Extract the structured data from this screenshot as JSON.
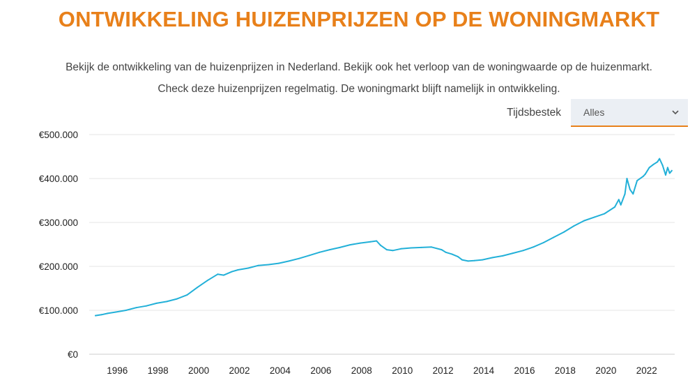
{
  "header": {
    "title": "ONTWIKKELING HUIZENPRIJZEN OP DE WONINGMARKT",
    "intro_line1": "Bekijk de ontwikkeling van de huizenprijzen in Nederland. Bekijk ook het verloop van de woningwaarde op de huizenmarkt.",
    "intro_line2": "Check deze huizenprijzen regelmatig. De woningmarkt blijft namelijk in ontwikkeling."
  },
  "controls": {
    "timeframe_label": "Tijdsbestek",
    "timeframe_selected": "Alles",
    "chevron_icon": "chevron-down-icon"
  },
  "colors": {
    "title": "#e8801a",
    "line": "#22b0d8",
    "grid": "#e6e6e6",
    "select_bg": "#ebeff4",
    "select_underline": "#e8801a"
  },
  "chart_data": {
    "type": "line",
    "title": "",
    "xlabel": "",
    "ylabel": "",
    "ylim": [
      0,
      500000
    ],
    "xlim": [
      1994.6,
      2023.9
    ],
    "grid": true,
    "y_ticks": [
      0,
      100000,
      200000,
      300000,
      400000,
      500000
    ],
    "y_tick_labels": [
      "€0",
      "€100.000",
      "€200.000",
      "€300.000",
      "€400.000",
      "€500.000"
    ],
    "x_ticks": [
      1996,
      1998,
      2000,
      2002,
      2004,
      2006,
      2008,
      2010,
      2012,
      2014,
      2016,
      2018,
      2020,
      2022
    ],
    "x_tick_labels": [
      "1996",
      "1998",
      "2000",
      "2002",
      "2004",
      "2006",
      "2008",
      "2010",
      "2012",
      "2014",
      "2016",
      "2018",
      "2020",
      "2022"
    ],
    "series": [
      {
        "name": "",
        "x": [
          1995.0,
          1995.3,
          1995.6,
          1996.0,
          1996.5,
          1997.0,
          1997.5,
          1998.0,
          1998.5,
          1999.0,
          1999.5,
          2000.0,
          2000.5,
          2001.0,
          2001.3,
          2001.7,
          2002.0,
          2002.5,
          2003.0,
          2003.5,
          2004.0,
          2004.5,
          2005.0,
          2005.5,
          2006.0,
          2006.5,
          2007.0,
          2007.5,
          2008.0,
          2008.5,
          2008.8,
          2009.0,
          2009.3,
          2009.6,
          2010.0,
          2010.5,
          2011.0,
          2011.5,
          2012.0,
          2012.2,
          2012.5,
          2012.8,
          2013.0,
          2013.3,
          2013.6,
          2014.0,
          2014.5,
          2015.0,
          2015.5,
          2016.0,
          2016.5,
          2017.0,
          2017.5,
          2018.0,
          2018.5,
          2019.0,
          2019.5,
          2020.0,
          2020.5,
          2020.7,
          2020.8,
          2021.0,
          2021.1,
          2021.25,
          2021.4,
          2021.6,
          2021.9,
          2022.0,
          2022.2,
          2022.4,
          2022.6,
          2022.7,
          2022.85,
          2023.0,
          2023.1,
          2023.2,
          2023.3
        ],
        "y": [
          88000,
          90000,
          93000,
          96000,
          100000,
          106000,
          110000,
          116000,
          120000,
          126000,
          135000,
          152000,
          168000,
          182000,
          180000,
          188000,
          192000,
          196000,
          202000,
          204000,
          207000,
          212000,
          218000,
          225000,
          232000,
          238000,
          243000,
          249000,
          253000,
          256000,
          258000,
          248000,
          238000,
          236000,
          240000,
          242000,
          243000,
          244000,
          238000,
          232000,
          228000,
          222000,
          215000,
          212000,
          213000,
          215000,
          220000,
          224000,
          230000,
          236000,
          244000,
          254000,
          266000,
          278000,
          292000,
          304000,
          312000,
          320000,
          335000,
          352000,
          340000,
          365000,
          400000,
          375000,
          365000,
          395000,
          405000,
          410000,
          425000,
          432000,
          438000,
          445000,
          430000,
          408000,
          425000,
          412000,
          418000
        ]
      }
    ]
  }
}
